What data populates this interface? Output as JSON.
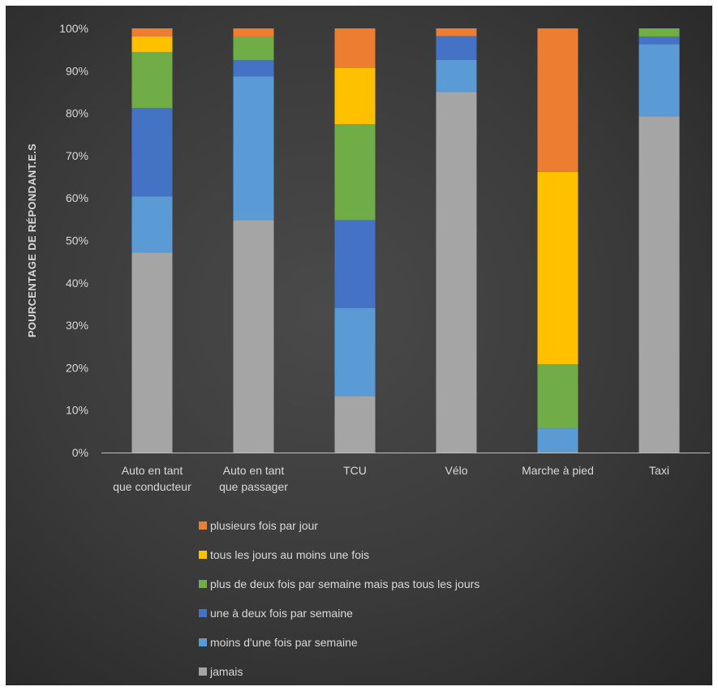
{
  "chart_data": {
    "type": "bar",
    "stacked": true,
    "ylabel": "POURCENTAGE DE RÉPONDANT.E.S",
    "ylim": [
      0,
      100
    ],
    "yticks": [
      0,
      10,
      20,
      30,
      40,
      50,
      60,
      70,
      80,
      90,
      100
    ],
    "ytick_suffix": "%",
    "grid": false,
    "legend_placement": "bottom",
    "categories": [
      [
        "Auto en tant",
        "que conducteur"
      ],
      [
        "Auto en tant",
        "que passager"
      ],
      [
        "TCU"
      ],
      [
        "Vélo"
      ],
      [
        "Marche à pied"
      ],
      [
        "Taxi"
      ]
    ],
    "series": [
      {
        "name": "jamais",
        "color": "#a5a5a5",
        "values": [
          47.2,
          54.8,
          13.3,
          85.0,
          0.0,
          79.3
        ]
      },
      {
        "name": "moins d'une fois par semaine",
        "color": "#5b9bd5",
        "values": [
          13.2,
          33.9,
          20.8,
          7.6,
          5.7,
          17.0
        ]
      },
      {
        "name": "une à deux fois par semaine",
        "color": "#4472c4",
        "values": [
          20.8,
          3.8,
          20.7,
          5.6,
          0.0,
          1.8
        ]
      },
      {
        "name": "plus de deux fois par semaine mais pas tous les jours",
        "color": "#70ad47",
        "values": [
          13.2,
          5.6,
          22.6,
          0.0,
          15.1,
          1.9
        ]
      },
      {
        "name": "tous les jours au moins une fois",
        "color": "#ffc000",
        "values": [
          3.7,
          0.0,
          13.3,
          0.0,
          45.4,
          0.0
        ]
      },
      {
        "name": "plusieurs fois par jour",
        "color": "#ed7d31",
        "values": [
          1.9,
          1.9,
          9.3,
          1.8,
          33.8,
          0.0
        ]
      }
    ],
    "legend_order": [
      5,
      4,
      3,
      2,
      1,
      0
    ]
  }
}
